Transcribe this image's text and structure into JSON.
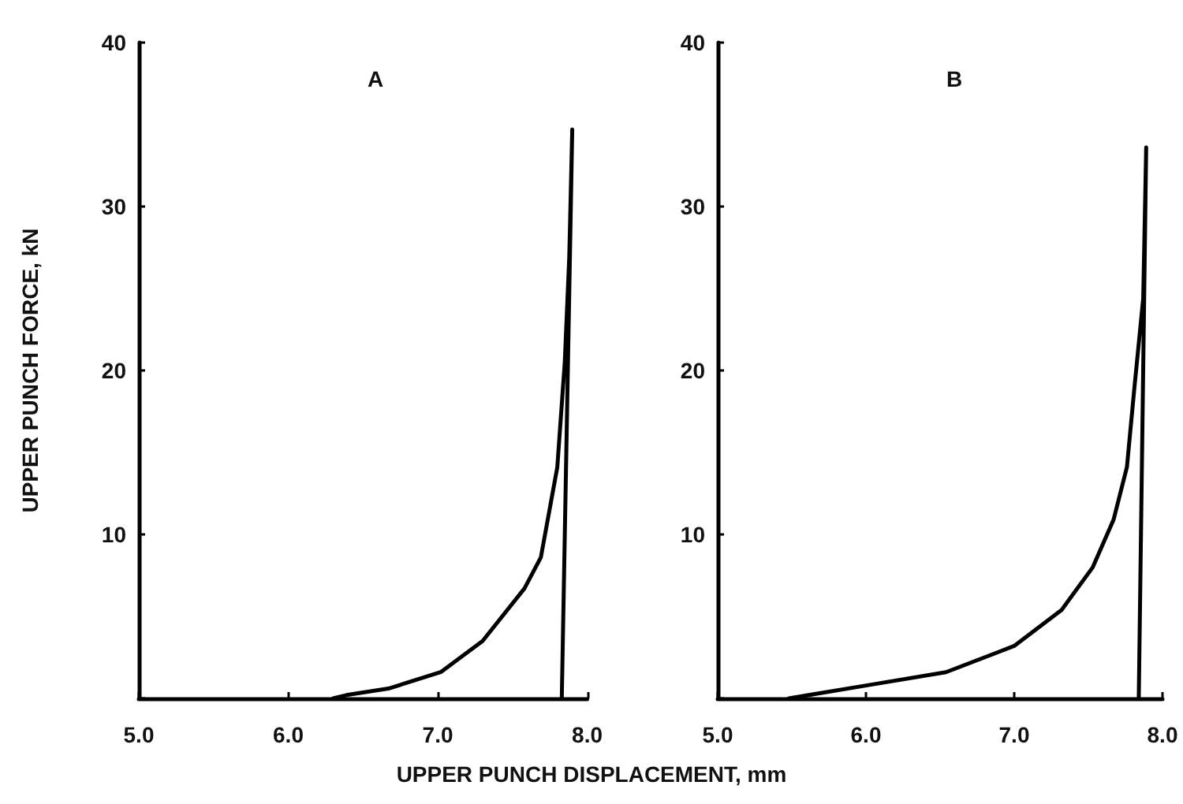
{
  "chart_data": [
    {
      "type": "line",
      "title": "A",
      "ylabel": "UPPER PUNCH FORCE, kN",
      "xlabel": "UPPER PUNCH DISPLACEMENT, mm",
      "series": [
        {
          "color": "#000000",
          "x": [
            6.3,
            6.39,
            6.67,
            7.02,
            7.3,
            7.58,
            7.69,
            7.8,
            7.85,
            7.88,
            7.9,
            7.83
          ],
          "values": [
            0,
            0.2,
            0.6,
            1.6,
            3.5,
            6.7,
            8.6,
            14.1,
            20.5,
            26.9,
            34.7,
            0
          ]
        }
      ],
      "xlim": [
        5,
        8
      ],
      "xticks": [
        {
          "value": 5,
          "label": "5.0"
        },
        {
          "value": 6,
          "label": "6.0"
        },
        {
          "value": 7,
          "label": "7.0"
        },
        {
          "value": 8,
          "label": "8.0"
        }
      ],
      "ylim": [
        0,
        40
      ],
      "yticks": [
        {
          "value": 0,
          "label": null
        },
        10,
        20,
        30,
        40
      ],
      "grid": false,
      "marker": "none",
      "line_style": "solid"
    },
    {
      "type": "line",
      "title": "B",
      "series": [
        {
          "color": "#000000",
          "x": [
            5.48,
            6.01,
            6.54,
            7.0,
            7.32,
            7.53,
            7.67,
            7.76,
            7.81,
            7.87,
            7.89,
            7.84
          ],
          "values": [
            0,
            0.8,
            1.6,
            3.2,
            5.4,
            8.0,
            10.9,
            14.1,
            18.9,
            24.4,
            33.6,
            0
          ]
        }
      ],
      "xlim": [
        5,
        8
      ],
      "xticks": [
        {
          "value": 5,
          "label": "5.0"
        },
        {
          "value": 6,
          "label": "6.0"
        },
        {
          "value": 7,
          "label": "7.0"
        },
        {
          "value": 8,
          "label": "8.0"
        }
      ],
      "ylim": [
        0,
        40
      ],
      "yticks": [
        {
          "value": 0,
          "label": null
        },
        10,
        20,
        30,
        40
      ],
      "grid": false,
      "marker": "none",
      "line_style": "solid"
    }
  ]
}
